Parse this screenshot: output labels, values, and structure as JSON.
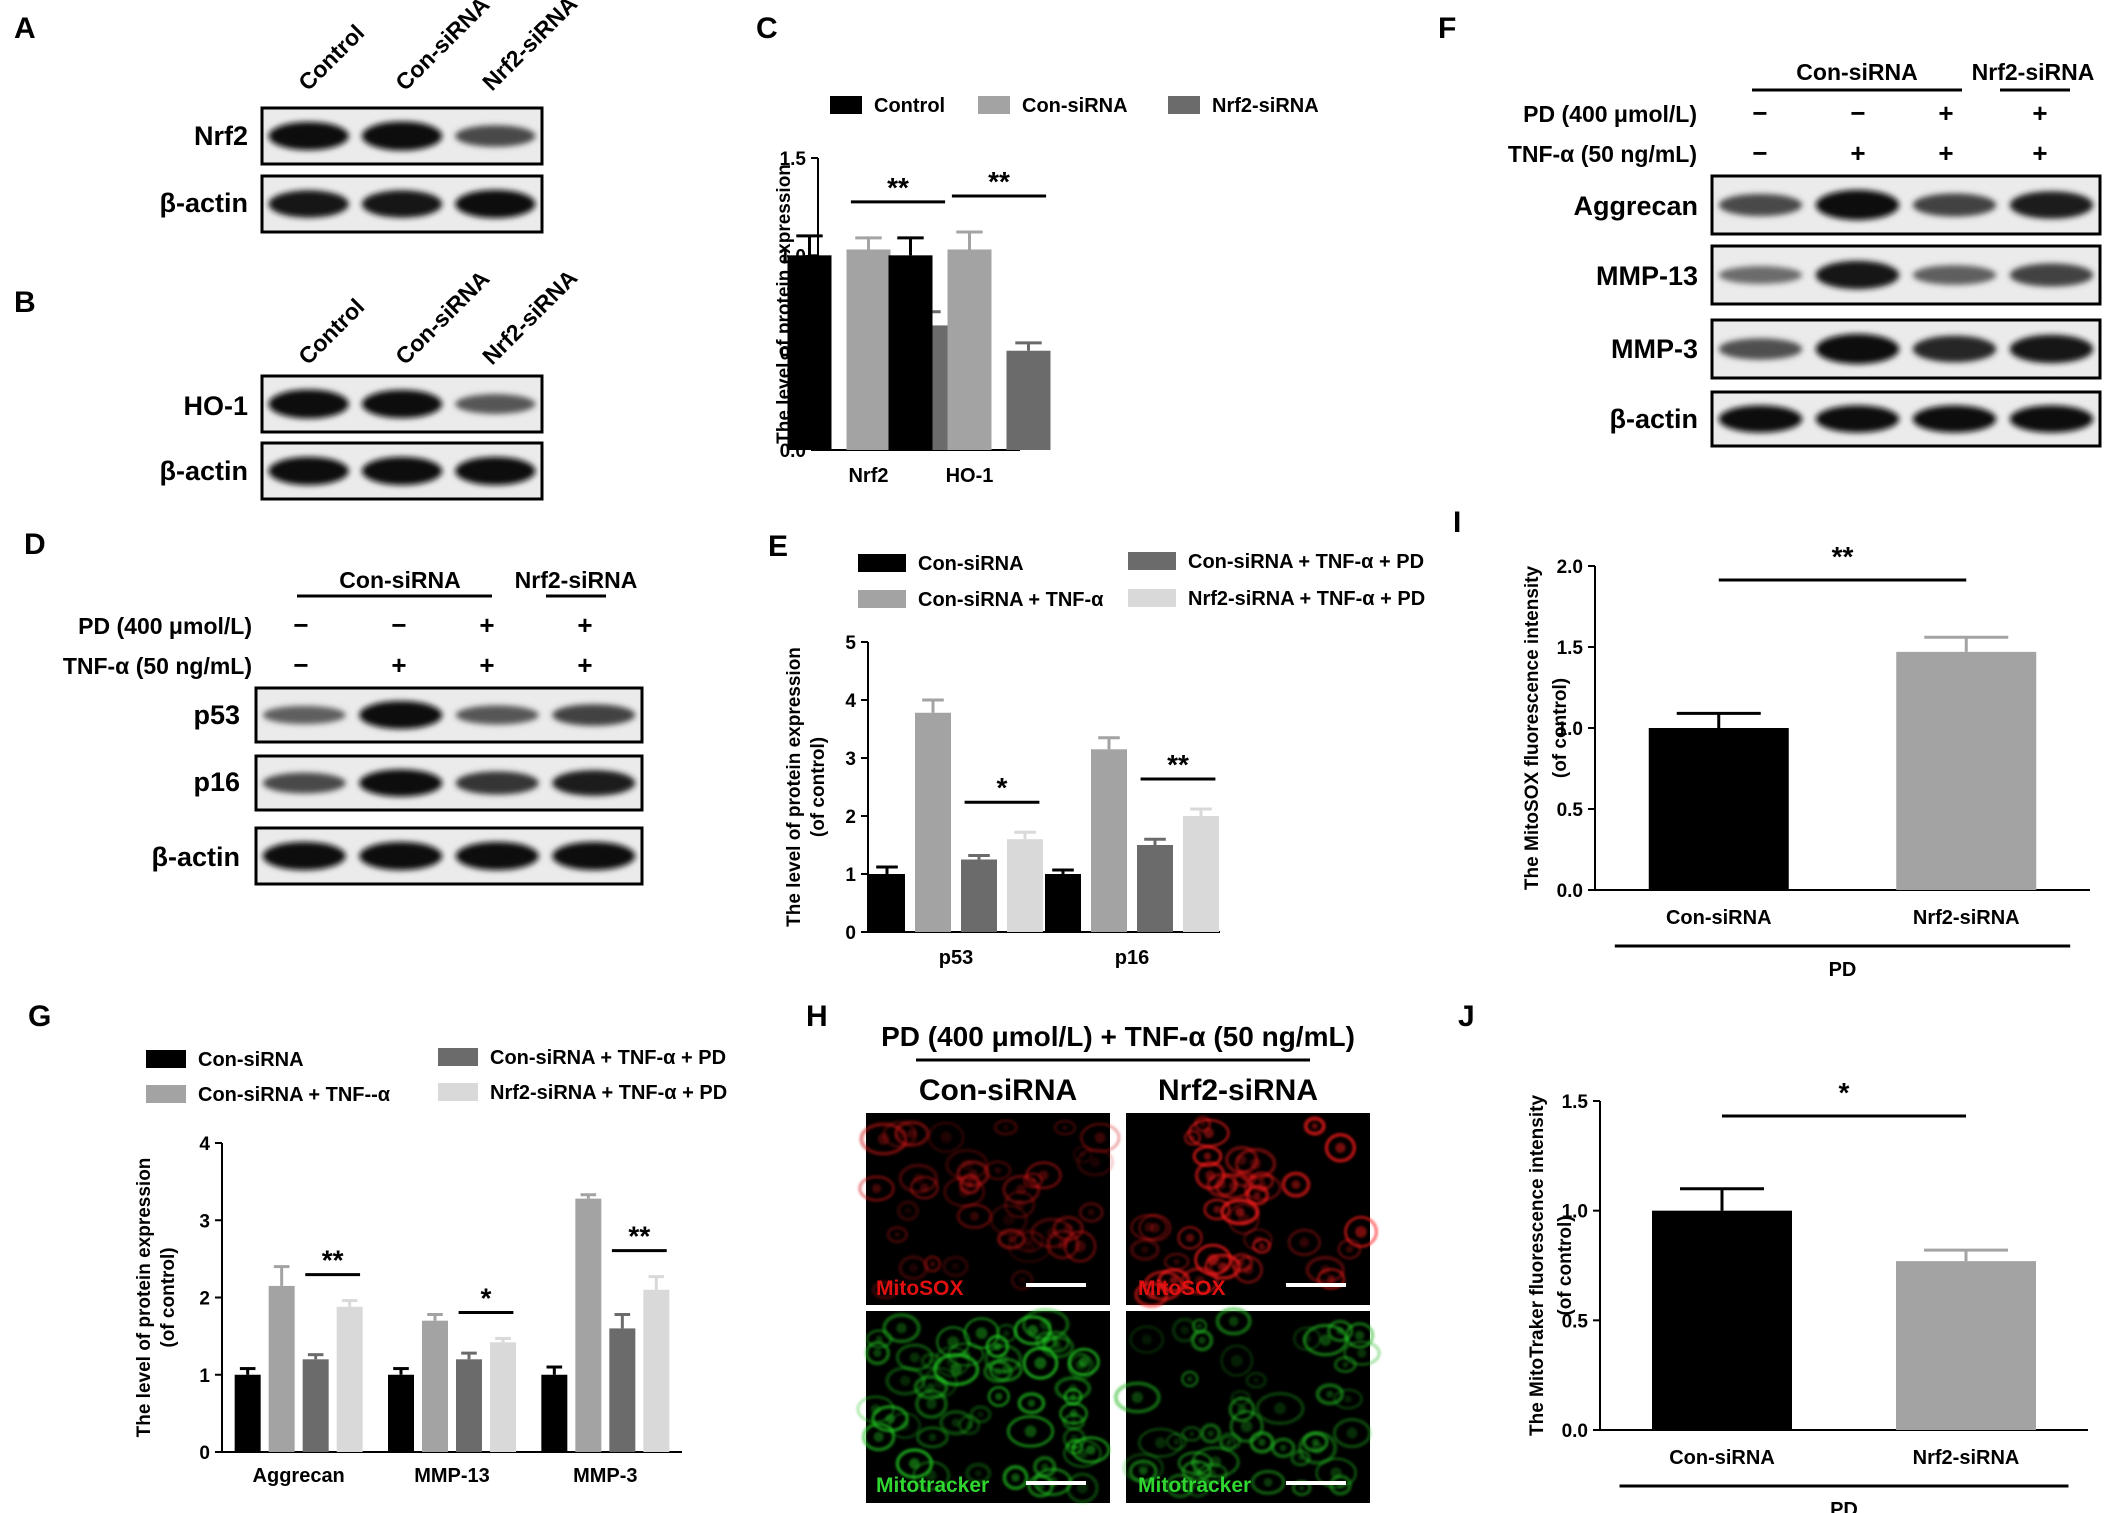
{
  "panels": {
    "a": {
      "letter": "A",
      "lanes": [
        "Control",
        "Con-siRNA",
        "Nrf2-siRNA"
      ],
      "rows": [
        {
          "label": "Nrf2",
          "bands": [
            0.95,
            1.0,
            0.55
          ]
        },
        {
          "label": "β-actin",
          "bands": [
            0.9,
            0.9,
            0.95
          ]
        }
      ]
    },
    "b": {
      "letter": "B",
      "lanes": [
        "Control",
        "Con-siRNA",
        "Nrf2-siRNA"
      ],
      "rows": [
        {
          "label": "HO-1",
          "bands": [
            1.0,
            0.95,
            0.45
          ]
        },
        {
          "label": "β-actin",
          "bands": [
            0.95,
            0.95,
            0.95
          ]
        }
      ]
    },
    "d": {
      "letter": "D",
      "groups": [
        {
          "label": "Con-siRNA",
          "span": [
            0,
            2
          ]
        },
        {
          "label": "Nrf2-siRNA",
          "span": [
            3,
            3
          ]
        }
      ],
      "conditions": [
        {
          "label": "PD (400 μmol/L)",
          "marks": [
            "−",
            "−",
            "+",
            "+"
          ]
        },
        {
          "label": "TNF-α (50 ng/mL)",
          "marks": [
            "−",
            "+",
            "+",
            "+"
          ]
        }
      ],
      "rows": [
        {
          "label": "p53",
          "bands": [
            0.4,
            1.0,
            0.45,
            0.6
          ]
        },
        {
          "label": "p16",
          "bands": [
            0.55,
            0.95,
            0.7,
            0.85
          ]
        },
        {
          "label": "β-actin",
          "bands": [
            0.95,
            0.95,
            0.95,
            0.95
          ]
        }
      ]
    },
    "f": {
      "letter": "F",
      "groups": [
        {
          "label": "Con-siRNA",
          "span": [
            0,
            2
          ]
        },
        {
          "label": "Nrf2-siRNA",
          "span": [
            3,
            3
          ]
        }
      ],
      "conditions": [
        {
          "label": "PD (400 μmol/L)",
          "marks": [
            "−",
            "−",
            "+",
            "+"
          ]
        },
        {
          "label": "TNF-α (50 ng/mL)",
          "marks": [
            "−",
            "+",
            "+",
            "+"
          ]
        }
      ],
      "rows": [
        {
          "label": "Aggrecan",
          "bands": [
            0.55,
            1.0,
            0.6,
            0.85
          ]
        },
        {
          "label": "MMP-13",
          "bands": [
            0.3,
            0.9,
            0.4,
            0.6
          ]
        },
        {
          "label": "MMP-3",
          "bands": [
            0.5,
            1.0,
            0.8,
            0.9
          ]
        },
        {
          "label": "β-actin",
          "bands": [
            0.95,
            0.95,
            0.95,
            0.95
          ]
        }
      ]
    },
    "h": {
      "letter": "H",
      "condition": "PD (400 μmol/L) + TNF-α (50 ng/mL)",
      "columns": [
        "Con-siRNA",
        "Nrf2-siRNA"
      ],
      "rows": [
        "MitoSOX",
        "Mitotracker"
      ]
    }
  },
  "chart_data": [
    {
      "panel": "C",
      "type": "bar",
      "categories": [
        "Nrf2",
        "HO-1"
      ],
      "series": [
        {
          "name": "Control",
          "values": [
            1.0,
            1.0
          ],
          "errors": [
            0.1,
            0.09
          ]
        },
        {
          "name": "Con-siRNA",
          "values": [
            1.03,
            1.03
          ],
          "errors": [
            0.06,
            0.09
          ]
        },
        {
          "name": "Nrf2-siRNA",
          "values": [
            0.64,
            0.51
          ],
          "errors": [
            0.07,
            0.04
          ]
        }
      ],
      "colors": [
        "#000000",
        "#a3a3a3",
        "#6b6b6b"
      ],
      "ylabel": "The level of protein expression\n(of control)",
      "ylim": [
        0,
        1.5
      ],
      "yticks": [
        "0.0",
        "0.5",
        "1.0",
        "1.5"
      ],
      "significance": [
        {
          "category": "Nrf2",
          "label": "**"
        },
        {
          "category": "HO-1",
          "label": "**"
        }
      ]
    },
    {
      "panel": "E",
      "type": "bar",
      "categories": [
        "p53",
        "p16"
      ],
      "series": [
        {
          "name": "Con-siRNA",
          "values": [
            1.0,
            1.0
          ],
          "errors": [
            0.12,
            0.07
          ]
        },
        {
          "name": "Con-siRNA + TNF-α",
          "values": [
            3.78,
            3.15
          ],
          "errors": [
            0.22,
            0.2
          ]
        },
        {
          "name": "Con-siRNA + TNF-α + PD",
          "values": [
            1.25,
            1.5
          ],
          "errors": [
            0.07,
            0.1
          ]
        },
        {
          "name": "Nrf2-siRNA + TNF-α + PD",
          "values": [
            1.6,
            2.0
          ],
          "errors": [
            0.12,
            0.12
          ]
        }
      ],
      "colors": [
        "#000000",
        "#a3a3a3",
        "#6b6b6b",
        "#d9d9d9"
      ],
      "ylabel": "The level of protein expression\n(of control)",
      "ylim": [
        0,
        5
      ],
      "yticks": [
        "0",
        "1",
        "2",
        "3",
        "4",
        "5"
      ],
      "significance": [
        {
          "category": "p53",
          "label": "*"
        },
        {
          "category": "p16",
          "label": "**"
        }
      ]
    },
    {
      "panel": "G",
      "type": "bar",
      "categories": [
        "Aggrecan",
        "MMP-13",
        "MMP-3"
      ],
      "series": [
        {
          "name": "Con-siRNA",
          "values": [
            1.0,
            1.0,
            1.0
          ],
          "errors": [
            0.08,
            0.08,
            0.1
          ]
        },
        {
          "name": "Con-siRNA + TNF--α",
          "values": [
            2.15,
            1.7,
            3.28
          ],
          "errors": [
            0.25,
            0.08,
            0.05
          ]
        },
        {
          "name": "Con-siRNA + TNF-α + PD",
          "values": [
            1.2,
            1.2,
            1.6
          ],
          "errors": [
            0.06,
            0.08,
            0.18
          ]
        },
        {
          "name": "Nrf2-siRNA + TNF-α + PD",
          "values": [
            1.88,
            1.42,
            2.1
          ],
          "errors": [
            0.08,
            0.05,
            0.17
          ]
        }
      ],
      "colors": [
        "#000000",
        "#a3a3a3",
        "#6b6b6b",
        "#d9d9d9"
      ],
      "ylabel": "The level of protein expression\n(of control)",
      "ylim": [
        0,
        4
      ],
      "yticks": [
        "0",
        "1",
        "2",
        "3",
        "4"
      ],
      "significance": [
        {
          "category": "Aggrecan",
          "label": "**"
        },
        {
          "category": "MMP-13",
          "label": "*"
        },
        {
          "category": "MMP-3",
          "label": "**"
        }
      ]
    },
    {
      "panel": "I",
      "type": "bar",
      "categories": [
        "Con-siRNA",
        "Nrf2-siRNA"
      ],
      "values": [
        1.0,
        1.47
      ],
      "errors": [
        0.09,
        0.09
      ],
      "colors": [
        "#000000",
        "#a3a3a3"
      ],
      "ylabel": "The MitoSOX fluorescence intensity\n(of control)",
      "xlabel": "PD",
      "ylim": [
        0,
        2.0
      ],
      "yticks": [
        "0.0",
        "0.5",
        "1.0",
        "1.5",
        "2.0"
      ],
      "significance": [
        {
          "label": "**"
        }
      ]
    },
    {
      "panel": "J",
      "type": "bar",
      "categories": [
        "Con-siRNA",
        "Nrf2-siRNA"
      ],
      "values": [
        1.0,
        0.77
      ],
      "errors": [
        0.1,
        0.05
      ],
      "colors": [
        "#000000",
        "#a3a3a3"
      ],
      "ylabel": "The MitoTraker fluorescence intensity\n(of control)",
      "xlabel": "PD",
      "ylim": [
        0,
        1.5
      ],
      "yticks": [
        "0.0",
        "0.5",
        "1.0",
        "1.5"
      ],
      "significance": [
        {
          "label": "*"
        }
      ]
    }
  ]
}
